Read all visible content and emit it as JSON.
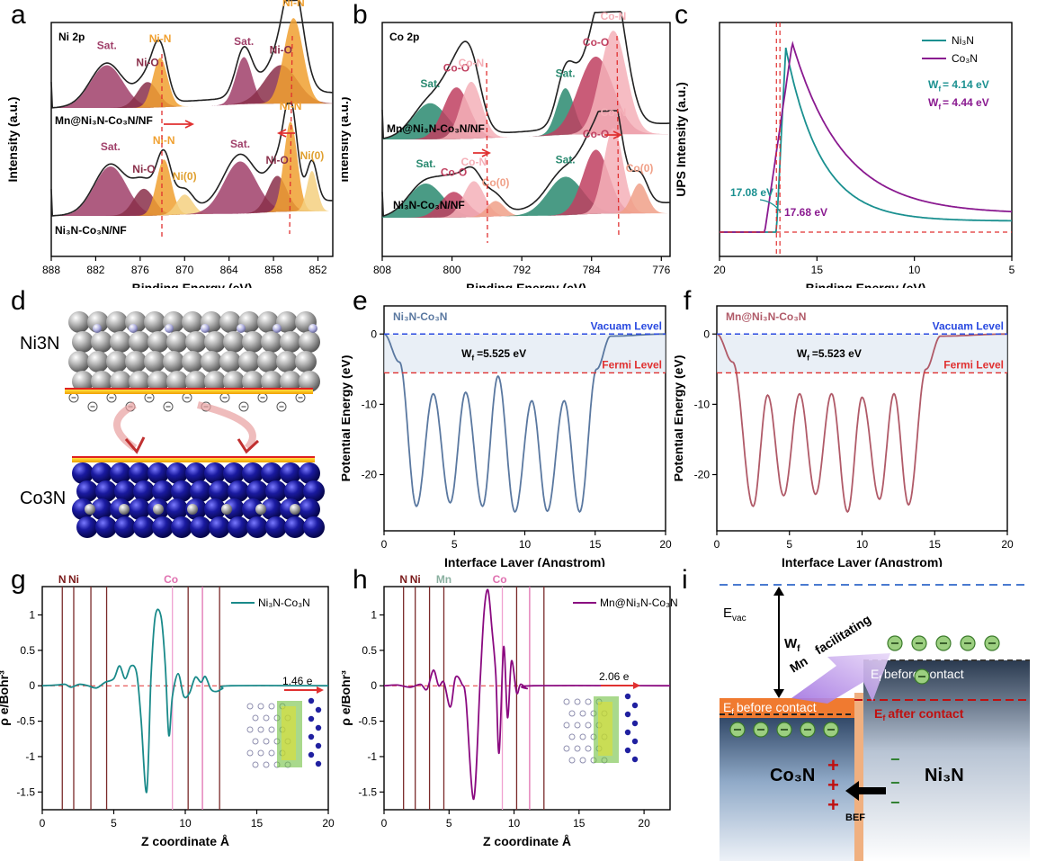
{
  "panel_letters": [
    "a",
    "b",
    "c",
    "d",
    "e",
    "f",
    "g",
    "h",
    "i"
  ],
  "chart_data": [
    {
      "id": "a",
      "type": "line",
      "element_label": "Ni 2p",
      "xlabel": "Binding Energy (eV)",
      "ylabel": "Intensity (a.u.)",
      "xlim": [
        888,
        850
      ],
      "xticks": [
        888,
        882,
        876,
        870,
        864,
        858,
        852
      ],
      "series": [
        {
          "name": "Mn@Ni₃N-Co₃N/NF",
          "peaks": [
            {
              "label": "Sat.",
              "center": 880.5,
              "height": 0.5,
              "color": "#a0406a"
            },
            {
              "label": "Ni-O",
              "center": 875.0,
              "height": 0.3,
              "color": "#8a2f4a"
            },
            {
              "label": "Ni-N",
              "center": 873.3,
              "height": 0.58,
              "color": "#f0a030"
            },
            {
              "label": "Sat.",
              "center": 862.0,
              "height": 0.55,
              "color": "#a0406a"
            },
            {
              "label": "Ni-O",
              "center": 857.0,
              "height": 0.45,
              "color": "#8a2f4a"
            },
            {
              "label": "Ni-N",
              "center": 855.3,
              "height": 1.0,
              "color": "#f0a030"
            }
          ]
        },
        {
          "name": "Ni₃N-Co₃N/NF",
          "peaks": [
            {
              "label": "Sat.",
              "center": 880.0,
              "height": 0.55,
              "color": "#a0406a"
            },
            {
              "label": "Ni-O",
              "center": 875.5,
              "height": 0.3,
              "color": "#8a2f4a"
            },
            {
              "label": "Ni-N",
              "center": 872.8,
              "height": 0.62,
              "color": "#f0a030"
            },
            {
              "label": "Ni(0)",
              "center": 870.0,
              "height": 0.22,
              "color": "#f5d080"
            },
            {
              "label": "Sat.",
              "center": 862.5,
              "height": 0.58,
              "color": "#a0406a"
            },
            {
              "label": "Ni-O",
              "center": 857.5,
              "height": 0.4,
              "color": "#8a2f4a"
            },
            {
              "label": "Ni-N",
              "center": 855.7,
              "height": 1.0,
              "color": "#f0a030"
            },
            {
              "label": "Ni(0)",
              "center": 852.8,
              "height": 0.45,
              "color": "#f5d080"
            }
          ]
        }
      ]
    },
    {
      "id": "b",
      "type": "line",
      "element_label": "Co 2p",
      "xlabel": "Binding Energy (eV)",
      "ylabel": "Intensity (a.u.)",
      "xlim": [
        808,
        775
      ],
      "xticks": [
        808,
        800,
        792,
        784,
        776
      ],
      "series": [
        {
          "name": "Mn@Ni₃N-Co₃N/NF",
          "peaks": [
            {
              "label": "Sat.",
              "center": 802.5,
              "height": 0.35,
              "color": "#2a8a70"
            },
            {
              "label": "Co-O",
              "center": 799.5,
              "height": 0.5,
              "color": "#c04060"
            },
            {
              "label": "Co-N",
              "center": 797.8,
              "height": 0.55,
              "color": "#f5b0b8"
            },
            {
              "label": "Sat.",
              "center": 787.0,
              "height": 0.45,
              "color": "#2a8a70"
            },
            {
              "label": "Co-O",
              "center": 783.5,
              "height": 0.75,
              "color": "#c04060"
            },
            {
              "label": "Co-N",
              "center": 781.5,
              "height": 1.0,
              "color": "#f5b0b8"
            }
          ]
        },
        {
          "name": "Ni₃N-Co₃N/NF",
          "peaks": [
            {
              "label": "Sat.",
              "center": 803.0,
              "height": 0.4,
              "color": "#2a8a70"
            },
            {
              "label": "Co-O",
              "center": 799.8,
              "height": 0.3,
              "color": "#c04060"
            },
            {
              "label": "Co-N",
              "center": 797.5,
              "height": 0.42,
              "color": "#f5b0b8"
            },
            {
              "label": "Co(0)",
              "center": 795.0,
              "height": 0.18,
              "color": "#f0a088"
            },
            {
              "label": "Sat.",
              "center": 787.0,
              "height": 0.45,
              "color": "#2a8a70"
            },
            {
              "label": "Co-O",
              "center": 783.5,
              "height": 0.75,
              "color": "#c04060"
            },
            {
              "label": "Co-N",
              "center": 781.5,
              "height": 1.0,
              "color": "#f5b0b8"
            },
            {
              "label": "Co(0)",
              "center": 778.5,
              "height": 0.35,
              "color": "#f0a088"
            }
          ]
        }
      ]
    },
    {
      "id": "c",
      "type": "line",
      "xlabel": "Binding Energy (eV)",
      "ylabel": "UPS Intensity (a.u.)",
      "xlim": [
        20,
        5
      ],
      "xticks": [
        20,
        15,
        10,
        5
      ],
      "legend": "top-right",
      "series": [
        {
          "name": "Ni₃N",
          "color": "#1a9090",
          "cutoff": 17.08,
          "peak": 16.6,
          "wf": "Wf = 4.14 eV"
        },
        {
          "name": "Co₃N",
          "color": "#8a1a90",
          "cutoff": 17.68,
          "peak": 16.3,
          "wf": "Wf = 4.44 eV"
        }
      ],
      "annotations": [
        "17.08 eV",
        "17.68 eV"
      ],
      "wf_labels": [
        "W",
        "= 4.14 eV",
        "= 4.44 eV"
      ]
    },
    {
      "id": "e",
      "type": "line",
      "title": "Ni₃N-Co₃N",
      "xlabel": "Interface Layer (Angstrom)",
      "ylabel": "Potential Energy (eV)",
      "xlim": [
        0,
        20
      ],
      "ylim": [
        -28,
        4
      ],
      "xticks": [
        0,
        5,
        10,
        15,
        20
      ],
      "yticks": [
        0,
        -10,
        -20
      ],
      "color": "#5a78a0",
      "vacuum_label": "Vacuam Level",
      "fermi_label": "Fermi Level",
      "fermi_level": -5.525,
      "wf_label": "=5.525 eV",
      "minima": [
        {
          "x": 2.3,
          "y": -24.5
        },
        {
          "x": 4.7,
          "y": -24.0
        },
        {
          "x": 7.0,
          "y": -24.5
        },
        {
          "x": 9.3,
          "y": -25.3
        },
        {
          "x": 11.6,
          "y": -25.2
        },
        {
          "x": 13.9,
          "y": -25.3
        }
      ],
      "maxima": [
        {
          "x": 3.5,
          "y": -8.5
        },
        {
          "x": 5.8,
          "y": -8.3
        },
        {
          "x": 8.1,
          "y": -6.0
        },
        {
          "x": 10.5,
          "y": -9.5
        },
        {
          "x": 12.8,
          "y": -9.5
        }
      ]
    },
    {
      "id": "f",
      "type": "line",
      "title": "Mn@Ni₃N-Co₃N",
      "xlabel": "Interface Layer (Angstrom)",
      "ylabel": "Potential Energy (eV)",
      "xlim": [
        0,
        20
      ],
      "ylim": [
        -28,
        4
      ],
      "xticks": [
        0,
        5,
        10,
        15,
        20
      ],
      "yticks": [
        0,
        -10,
        -20
      ],
      "color": "#b05a68",
      "vacuum_label": "Vacuam Level",
      "fermi_label": "Fermi Level",
      "fermi_level": -5.523,
      "wf_label": "=5.523 eV",
      "minima": [
        {
          "x": 2.5,
          "y": -24.5
        },
        {
          "x": 4.6,
          "y": -23.0
        },
        {
          "x": 6.8,
          "y": -22.8
        },
        {
          "x": 9.0,
          "y": -25.3
        },
        {
          "x": 11.2,
          "y": -23.5
        },
        {
          "x": 13.2,
          "y": -24.3
        }
      ],
      "maxima": [
        {
          "x": 3.5,
          "y": -8.7
        },
        {
          "x": 5.7,
          "y": -8.5
        },
        {
          "x": 7.9,
          "y": -8.5
        },
        {
          "x": 10.0,
          "y": -9.0
        },
        {
          "x": 12.2,
          "y": -8.5
        }
      ]
    },
    {
      "id": "g",
      "type": "line",
      "xlabel": "Z coordinate Å",
      "ylabel": "ρ e/Bohr³",
      "xlim": [
        0,
        20
      ],
      "ylim": [
        -1.75,
        1.4
      ],
      "xticks": [
        0,
        5,
        10,
        15,
        20
      ],
      "yticks": [
        1.0,
        0.5,
        0.0,
        -0.5,
        -1.0,
        -1.5
      ],
      "series_name": "Ni₃N-Co₃N",
      "color": "#1a8a8a",
      "atom_labels": [
        {
          "text": "N",
          "x": 1.4,
          "color": "#7a1a1a"
        },
        {
          "text": "Ni",
          "x": 2.2,
          "color": "#7a1a1a"
        },
        {
          "text": "Co",
          "x": 9.0,
          "color": "#e070b0"
        }
      ],
      "vlines": [
        {
          "x": 1.4,
          "color": "#7a2a2a"
        },
        {
          "x": 2.2,
          "color": "#7a2a2a"
        },
        {
          "x": 3.4,
          "color": "#7a2a2a"
        },
        {
          "x": 4.5,
          "color": "#7a2a2a"
        },
        {
          "x": 9.1,
          "color": "#f0a0d0"
        },
        {
          "x": 10.2,
          "color": "#7a2a2a"
        },
        {
          "x": 11.2,
          "color": "#e070b0"
        },
        {
          "x": 12.4,
          "color": "#7a2a2a"
        }
      ],
      "transfer_label": "1.46 e",
      "curve": [
        [
          0,
          0
        ],
        [
          1.0,
          0.01
        ],
        [
          1.6,
          0.02
        ],
        [
          2.0,
          -0.02
        ],
        [
          2.6,
          0.02
        ],
        [
          3.2,
          0.0
        ],
        [
          3.8,
          -0.03
        ],
        [
          4.4,
          0.05
        ],
        [
          5.0,
          0.1
        ],
        [
          5.4,
          0.28
        ],
        [
          5.8,
          0.1
        ],
        [
          6.2,
          0.28
        ],
        [
          6.6,
          0.18
        ],
        [
          6.9,
          -0.45
        ],
        [
          7.3,
          -1.5
        ],
        [
          7.6,
          0.1
        ],
        [
          7.9,
          0.98
        ],
        [
          8.3,
          0.98
        ],
        [
          8.6,
          0.3
        ],
        [
          8.85,
          -0.7
        ],
        [
          9.1,
          -0.15
        ],
        [
          9.5,
          0.17
        ],
        [
          9.9,
          -0.15
        ],
        [
          10.3,
          -0.1
        ],
        [
          10.7,
          0.12
        ],
        [
          11.1,
          0.05
        ],
        [
          11.4,
          0.13
        ],
        [
          11.8,
          -0.05
        ],
        [
          12.2,
          -0.08
        ],
        [
          12.6,
          -0.04
        ],
        [
          13.2,
          0.0
        ],
        [
          20,
          0
        ]
      ]
    },
    {
      "id": "h",
      "type": "line",
      "xlabel": "Z coordinate Å",
      "ylabel": "ρ e/Bohr³",
      "xlim": [
        0,
        22
      ],
      "ylim": [
        -1.75,
        1.4
      ],
      "xticks": [
        0,
        5,
        10,
        15,
        20
      ],
      "yticks": [
        1.0,
        0.5,
        0.0,
        -0.5,
        -1.0,
        -1.5
      ],
      "series_name": "Mn@Ni₃N-Co₃N",
      "color": "#8a0a80",
      "atom_labels": [
        {
          "text": "N",
          "x": 1.5,
          "color": "#7a1a1a"
        },
        {
          "text": "Ni",
          "x": 2.4,
          "color": "#7a1a1a"
        },
        {
          "text": "Mn",
          "x": 4.6,
          "color": "#8ab0a0"
        },
        {
          "text": "Co",
          "x": 8.9,
          "color": "#e070b0"
        }
      ],
      "vlines": [
        {
          "x": 1.5,
          "color": "#7a2a2a"
        },
        {
          "x": 2.4,
          "color": "#7a2a2a"
        },
        {
          "x": 3.5,
          "color": "#7a2a2a"
        },
        {
          "x": 4.6,
          "color": "#7a2a2a"
        },
        {
          "x": 9.1,
          "color": "#f0a0d0"
        },
        {
          "x": 10.2,
          "color": "#7a2a2a"
        },
        {
          "x": 11.2,
          "color": "#e070b0"
        },
        {
          "x": 12.3,
          "color": "#7a2a2a"
        }
      ],
      "transfer_label": "2.06 e",
      "curve": [
        [
          0,
          0
        ],
        [
          1.0,
          0.01
        ],
        [
          2.0,
          -0.02
        ],
        [
          2.8,
          0.02
        ],
        [
          3.3,
          -0.05
        ],
        [
          3.8,
          0.22
        ],
        [
          4.2,
          0.0
        ],
        [
          4.6,
          0.05
        ],
        [
          5.1,
          -0.3
        ],
        [
          5.5,
          0.12
        ],
        [
          6.0,
          0.02
        ],
        [
          6.3,
          -0.2
        ],
        [
          6.9,
          -1.6
        ],
        [
          7.4,
          0.1
        ],
        [
          7.7,
          1.05
        ],
        [
          8.0,
          1.35
        ],
        [
          8.3,
          0.8
        ],
        [
          8.6,
          0.15
        ],
        [
          8.85,
          -0.95
        ],
        [
          9.2,
          0.55
        ],
        [
          9.5,
          -0.45
        ],
        [
          9.8,
          0.35
        ],
        [
          10.2,
          -0.1
        ],
        [
          10.5,
          0.02
        ],
        [
          11.0,
          -0.04
        ],
        [
          11.5,
          0.0
        ],
        [
          22,
          0
        ]
      ]
    }
  ],
  "panel_d": {
    "top_label": "Ni3N",
    "bottom_label": "Co3N"
  },
  "panel_i": {
    "evac": "E",
    "evac_sub": "vac",
    "wf": "W",
    "wf_sub": "f",
    "mn": "Mn",
    "facilitating": "facilitating",
    "ef_before": "before contact",
    "ef_after": "after contact",
    "ef": "E",
    "ef_sub": "f",
    "co3n": "Co₃N",
    "ni3n": "Ni₃N",
    "bef": "BEF"
  }
}
